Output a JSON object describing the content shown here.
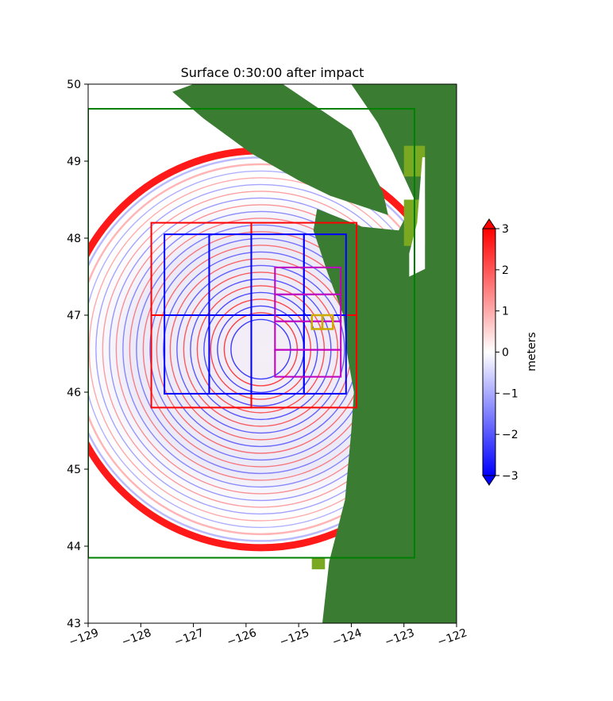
{
  "chart_data": {
    "type": "heatmap",
    "title": "Surface 0:30:00 after impact",
    "xlabel": "",
    "ylabel": "",
    "xlim": [
      -129,
      -122
    ],
    "ylim": [
      43,
      50
    ],
    "x_ticks": [
      -129,
      -128,
      -127,
      -126,
      -125,
      -124,
      -123,
      -122
    ],
    "y_ticks": [
      43,
      44,
      45,
      46,
      47,
      48,
      49,
      50
    ],
    "x_tick_labels": [
      "−129",
      "−128",
      "−127",
      "−126",
      "−125",
      "−124",
      "−123",
      "−122"
    ],
    "y_tick_labels": [
      "43",
      "44",
      "45",
      "46",
      "47",
      "48",
      "49",
      "50"
    ],
    "colorbar": {
      "label": "meters",
      "range": [
        -3,
        3
      ],
      "ticks": [
        3,
        2,
        1,
        0,
        -1,
        -2,
        -3
      ],
      "tick_labels": [
        "3",
        "2",
        "1",
        "0",
        "−1",
        "−2",
        "−3"
      ],
      "colormap": "bwr",
      "extend": "both"
    },
    "colors": {
      "land": "#3a7d32",
      "land_light": "#7aa820",
      "positive": "#ff0000",
      "negative": "#0000ff",
      "domain_box": "#008000",
      "level2_boxes": "#ff0000",
      "level3_boxes": "#0000ff",
      "level4_boxes": "#c000c0",
      "level5_boxes": "#ccaa00"
    },
    "impact_center": [
      -125.6,
      46.3
    ],
    "outer_domain": {
      "lon": [
        -129,
        -122.8
      ],
      "lat": [
        43.85,
        49.68
      ]
    },
    "grid_boxes": [
      {
        "level": 2,
        "lon": [
          -127.8,
          -125.9
        ],
        "lat": [
          47.0,
          48.2
        ]
      },
      {
        "level": 2,
        "lon": [
          -125.9,
          -123.9
        ],
        "lat": [
          47.0,
          48.2
        ]
      },
      {
        "level": 2,
        "lon": [
          -127.8,
          -125.9
        ],
        "lat": [
          45.8,
          47.0
        ]
      },
      {
        "level": 2,
        "lon": [
          -125.9,
          -123.9
        ],
        "lat": [
          45.8,
          47.0
        ]
      },
      {
        "level": 3,
        "lon": [
          -127.55,
          -126.7
        ],
        "lat": [
          47.0,
          48.05
        ]
      },
      {
        "level": 3,
        "lon": [
          -126.7,
          -125.9
        ],
        "lat": [
          47.0,
          48.05
        ]
      },
      {
        "level": 3,
        "lon": [
          -125.9,
          -124.9
        ],
        "lat": [
          47.0,
          48.05
        ]
      },
      {
        "level": 3,
        "lon": [
          -124.9,
          -124.1
        ],
        "lat": [
          47.0,
          48.05
        ]
      },
      {
        "level": 3,
        "lon": [
          -127.55,
          -126.7
        ],
        "lat": [
          45.98,
          47.0
        ]
      },
      {
        "level": 3,
        "lon": [
          -126.7,
          -125.9
        ],
        "lat": [
          45.98,
          47.0
        ]
      },
      {
        "level": 3,
        "lon": [
          -125.9,
          -124.9
        ],
        "lat": [
          45.98,
          47.0
        ]
      },
      {
        "level": 3,
        "lon": [
          -124.9,
          -124.1
        ],
        "lat": [
          45.98,
          47.0
        ]
      },
      {
        "level": 4,
        "lon": [
          -125.45,
          -124.2
        ],
        "lat": [
          47.27,
          47.62
        ]
      },
      {
        "level": 4,
        "lon": [
          -125.45,
          -124.2
        ],
        "lat": [
          46.92,
          47.27
        ]
      },
      {
        "level": 4,
        "lon": [
          -125.45,
          -124.2
        ],
        "lat": [
          46.55,
          46.92
        ]
      },
      {
        "level": 4,
        "lon": [
          -125.45,
          -124.2
        ],
        "lat": [
          46.2,
          46.55
        ]
      },
      {
        "level": 5,
        "lon": [
          -124.75,
          -124.55
        ],
        "lat": [
          46.82,
          47.0
        ]
      },
      {
        "level": 5,
        "lon": [
          -124.55,
          -124.35
        ],
        "lat": [
          46.82,
          47.0
        ]
      }
    ]
  }
}
